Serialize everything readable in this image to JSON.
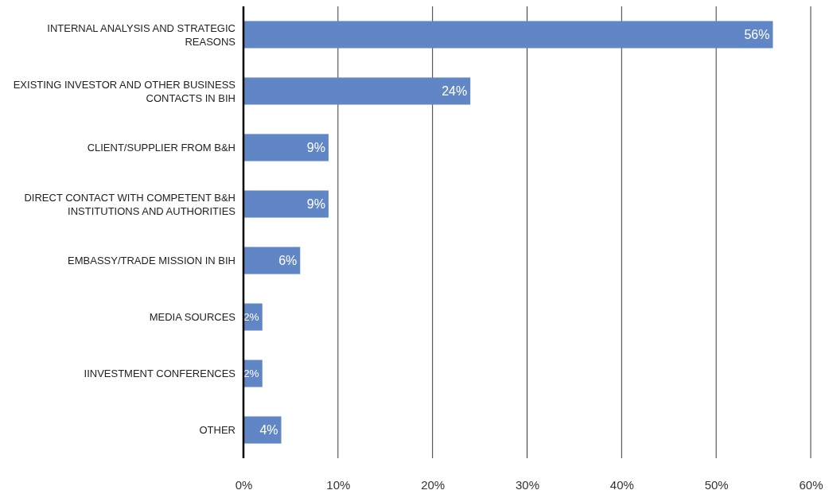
{
  "chart_data": {
    "type": "bar",
    "orientation": "horizontal",
    "categories": [
      "INTERNAL ANALYSIS AND STRATEGIC REASONS",
      "EXISTING INVESTOR AND OTHER BUSINESS CONTACTS IN BIH",
      "CLIENT/SUPPLIER FROM B&H",
      "DIRECT CONTACT WITH COMPETENT B&H INSTITUTIONS AND AUTHORITIES",
      "EMBASSY/TRADE MISSION IN BIH",
      "MEDIA SOURCES",
      "IINVESTMENT CONFERENCES",
      "OTHER"
    ],
    "values": [
      56,
      24,
      9,
      9,
      6,
      2,
      2,
      4
    ],
    "value_labels": [
      "56%",
      "24%",
      "9%",
      "9%",
      "6%",
      "2%",
      "2%",
      "4%"
    ],
    "color": "#6186c6",
    "xlim": [
      0,
      60
    ],
    "xticks": [
      {
        "value": 0,
        "label": "0%"
      },
      {
        "value": 10,
        "label": "10%"
      },
      {
        "value": 20,
        "label": "20%"
      },
      {
        "value": 30,
        "label": "30%"
      },
      {
        "value": 40,
        "label": "40%"
      },
      {
        "value": 50,
        "label": "50%"
      },
      {
        "value": 60,
        "label": "60%"
      }
    ],
    "grid": "x"
  }
}
